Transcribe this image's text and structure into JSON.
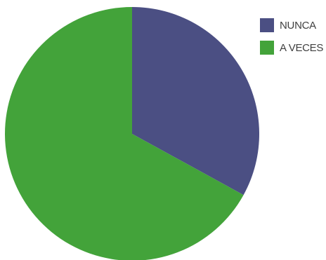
{
  "chart_data": {
    "type": "pie",
    "categories": [
      "NUNCA",
      "A VECES"
    ],
    "values": [
      33,
      67
    ],
    "colors": [
      "#4b4f83",
      "#43a33a"
    ],
    "legend_position": "top-right"
  }
}
